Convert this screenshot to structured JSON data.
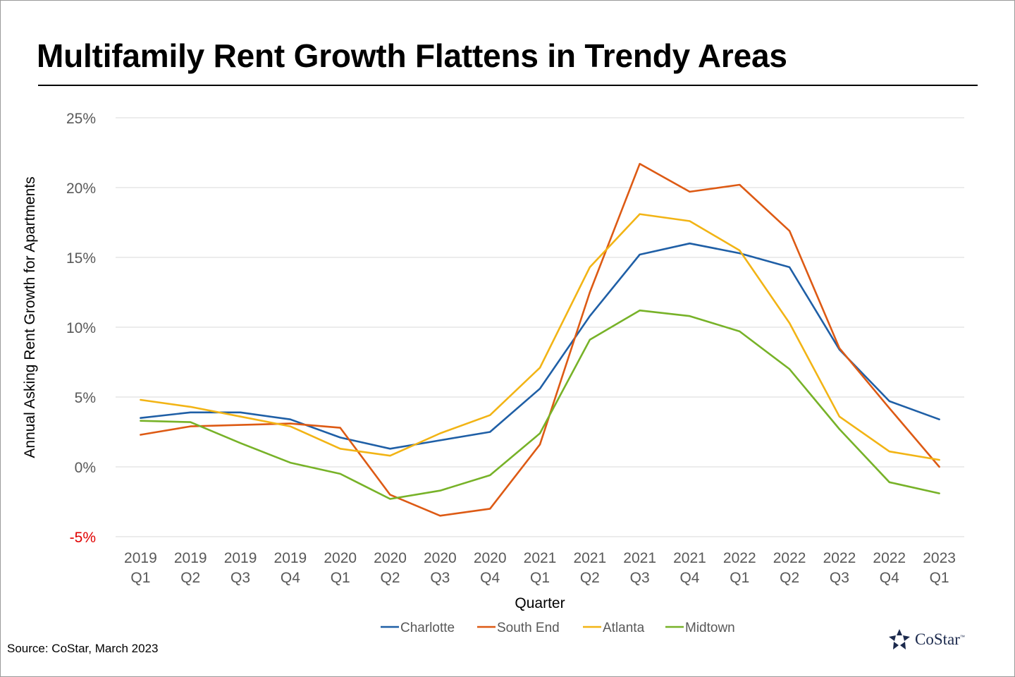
{
  "title": "Multifamily Rent Growth Flattens in Trendy Areas",
  "source": "Source: CoStar, March 2023",
  "logo": {
    "text": "CoStar",
    "tm": "™"
  },
  "colors": {
    "charlotte": "#1f5fa6",
    "south_end": "#dd5a14",
    "atlanta": "#f2b415",
    "midtown": "#77b228",
    "negative_tick": "#e00000",
    "grid": "#d9d9d9",
    "axis_text": "#595959"
  },
  "chart_data": {
    "type": "line",
    "title": "Multifamily Rent Growth Flattens in Trendy Areas",
    "xlabel": "Quarter",
    "ylabel": "Annual Asking Rent Growth for Apartments",
    "ylim": [
      -5,
      25
    ],
    "y_ticks": [
      -5,
      0,
      5,
      10,
      15,
      20,
      25
    ],
    "y_tick_labels": [
      "-5%",
      "0%",
      "5%",
      "10%",
      "15%",
      "20%",
      "25%"
    ],
    "grid": true,
    "legend_position": "bottom",
    "categories": [
      [
        "2019",
        "Q1"
      ],
      [
        "2019",
        "Q2"
      ],
      [
        "2019",
        "Q3"
      ],
      [
        "2019",
        "Q4"
      ],
      [
        "2020",
        "Q1"
      ],
      [
        "2020",
        "Q2"
      ],
      [
        "2020",
        "Q3"
      ],
      [
        "2020",
        "Q4"
      ],
      [
        "2021",
        "Q1"
      ],
      [
        "2021",
        "Q2"
      ],
      [
        "2021",
        "Q3"
      ],
      [
        "2021",
        "Q4"
      ],
      [
        "2022",
        "Q1"
      ],
      [
        "2022",
        "Q2"
      ],
      [
        "2022",
        "Q3"
      ],
      [
        "2022",
        "Q4"
      ],
      [
        "2023",
        "Q1"
      ]
    ],
    "series": [
      {
        "name": "Charlotte",
        "color": "#1f5fa6",
        "values": [
          3.5,
          3.9,
          3.9,
          3.4,
          2.1,
          1.3,
          1.9,
          2.5,
          5.6,
          10.8,
          15.2,
          16.0,
          15.3,
          14.3,
          8.4,
          4.7,
          3.4
        ]
      },
      {
        "name": "South End",
        "color": "#dd5a14",
        "values": [
          2.3,
          2.9,
          3.0,
          3.1,
          2.8,
          -2.0,
          -3.5,
          -3.0,
          1.6,
          12.5,
          21.7,
          19.7,
          20.2,
          16.9,
          8.5,
          4.2,
          0.0
        ]
      },
      {
        "name": "Atlanta",
        "color": "#f2b415",
        "values": [
          4.8,
          4.3,
          3.6,
          2.9,
          1.3,
          0.8,
          2.4,
          3.7,
          7.1,
          14.3,
          18.1,
          17.6,
          15.5,
          10.3,
          3.6,
          1.1,
          0.5
        ]
      },
      {
        "name": "Midtown",
        "color": "#77b228",
        "values": [
          3.3,
          3.2,
          1.7,
          0.3,
          -0.5,
          -2.3,
          -1.7,
          -0.6,
          2.4,
          9.1,
          11.2,
          10.8,
          9.7,
          7.0,
          2.7,
          -1.1,
          -1.9
        ]
      }
    ]
  }
}
